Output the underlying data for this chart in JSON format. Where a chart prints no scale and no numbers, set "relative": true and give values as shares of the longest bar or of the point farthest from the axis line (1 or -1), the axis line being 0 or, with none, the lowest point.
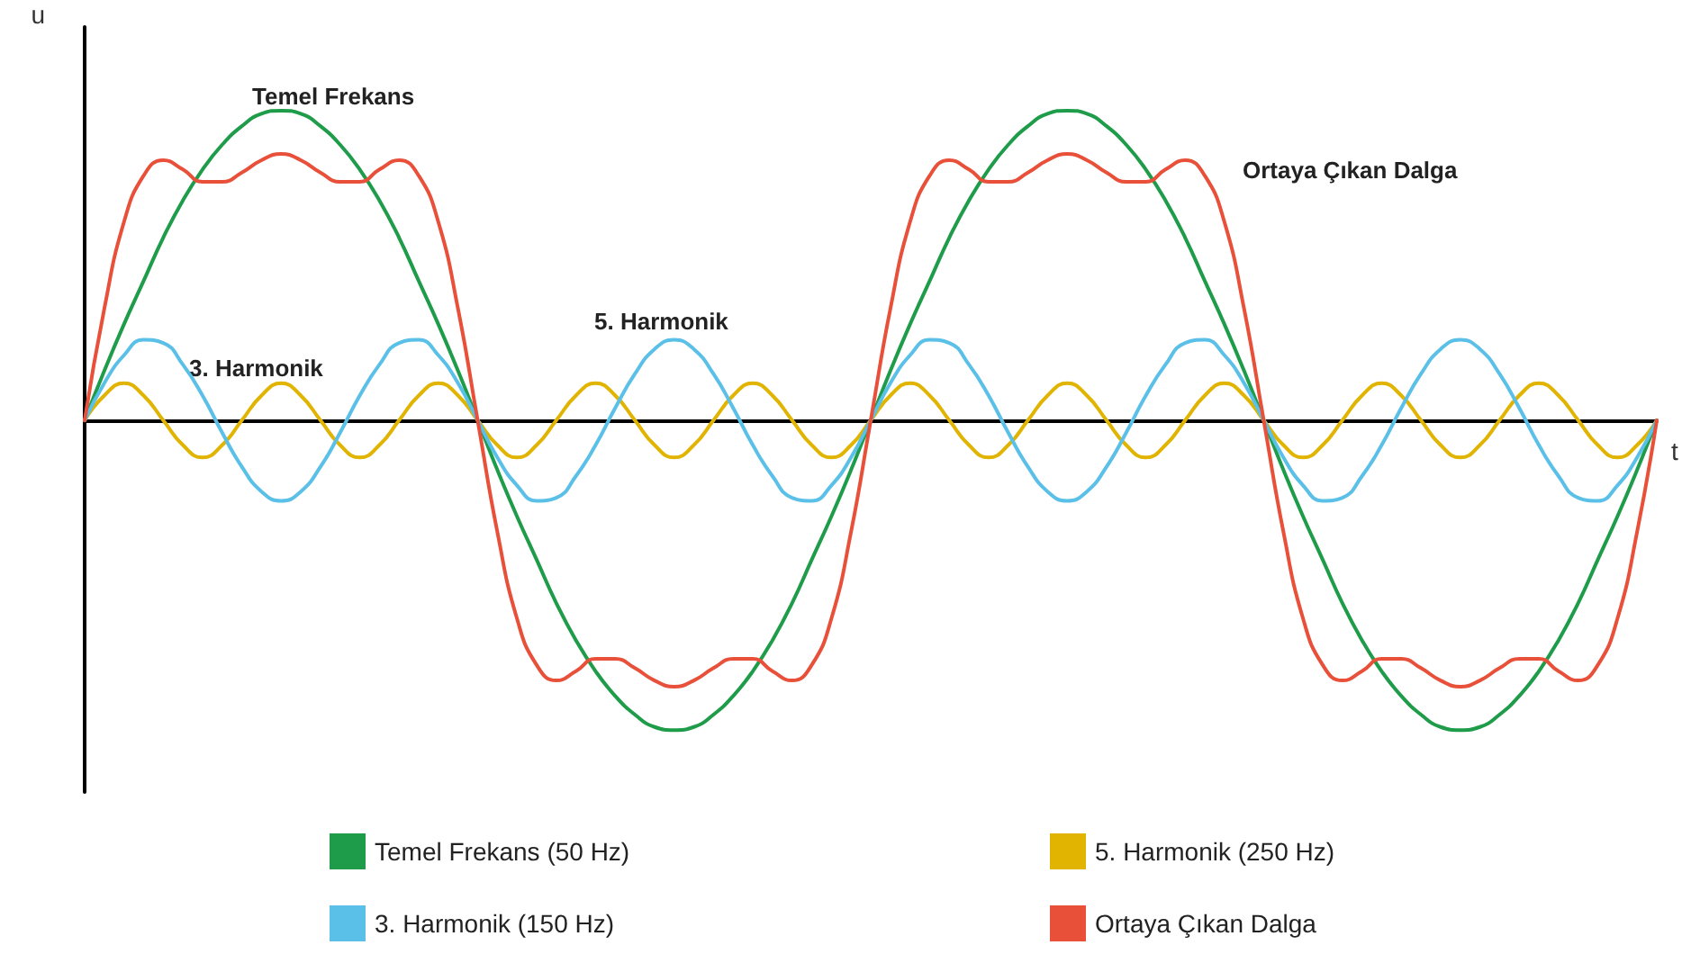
{
  "chart_data": {
    "type": "line",
    "relative": true,
    "xlabel": "t",
    "ylabel": "u",
    "legend": "bottom",
    "grid": false,
    "marker": "none",
    "line_style": "solid",
    "categories": [
      null,
      null,
      null,
      null,
      null,
      null,
      null,
      null,
      null,
      null,
      null,
      null,
      null,
      null,
      null,
      null,
      null,
      null,
      null,
      null,
      null,
      null,
      null,
      null,
      null,
      null,
      null,
      null,
      null,
      null,
      null,
      null,
      null,
      null,
      null,
      null,
      null,
      null,
      null,
      null,
      null,
      null,
      null,
      null,
      null,
      null,
      null,
      null,
      null,
      null,
      null,
      null,
      null,
      null,
      null,
      null,
      null,
      null,
      null,
      null,
      null,
      null,
      null,
      null,
      null,
      null,
      null,
      null,
      null,
      null,
      null,
      null,
      null,
      null,
      null,
      null,
      null,
      null,
      null,
      null,
      null
    ],
    "annotations": [
      "Temel Frekans",
      "3. Harmonik",
      "5. Harmonik",
      "Ortaya Çıkan Dalga"
    ],
    "series": [
      {
        "name": "Temel Frekans (50 Hz)",
        "color": "#1e9c4a",
        "values": [
          0,
          0.16,
          0.31,
          0.45,
          0.59,
          0.71,
          0.81,
          0.89,
          0.95,
          0.99,
          1,
          0.99,
          0.95,
          0.89,
          0.81,
          0.71,
          0.59,
          0.45,
          0.31,
          0.16,
          0,
          -0.16,
          -0.31,
          -0.45,
          -0.59,
          -0.71,
          -0.81,
          -0.89,
          -0.95,
          -0.99,
          -1,
          -0.99,
          -0.95,
          -0.89,
          -0.81,
          -0.71,
          -0.59,
          -0.45,
          -0.31,
          -0.16,
          0,
          0.16,
          0.31,
          0.45,
          0.59,
          0.71,
          0.81,
          0.89,
          0.95,
          0.99,
          1,
          0.99,
          0.95,
          0.89,
          0.81,
          0.71,
          0.59,
          0.45,
          0.31,
          0.16,
          0,
          -0.16,
          -0.31,
          -0.45,
          -0.59,
          -0.71,
          -0.81,
          -0.89,
          -0.95,
          -0.99,
          -1,
          -0.99,
          -0.95,
          -0.89,
          -0.81,
          -0.71,
          -0.59,
          -0.45,
          -0.31,
          -0.16,
          0
        ]
      },
      {
        "name": "5. Harmonik (250 Hz)",
        "color": "#e0b400",
        "values": [
          0,
          0.08,
          0.12,
          0.08,
          0,
          -0.08,
          -0.12,
          -0.08,
          0,
          0.08,
          0.12,
          0.08,
          0,
          -0.08,
          -0.12,
          -0.08,
          0,
          0.08,
          0.12,
          0.08,
          0,
          -0.08,
          -0.12,
          -0.08,
          0,
          0.08,
          0.12,
          0.08,
          0,
          -0.08,
          -0.12,
          -0.08,
          0,
          0.08,
          0.12,
          0.08,
          0,
          -0.08,
          -0.12,
          -0.08,
          0,
          0.08,
          0.12,
          0.08,
          0,
          -0.08,
          -0.12,
          -0.08,
          0,
          0.08,
          0.12,
          0.08,
          0,
          -0.08,
          -0.12,
          -0.08,
          0,
          0.08,
          0.12,
          0.08,
          0,
          -0.08,
          -0.12,
          -0.08,
          0,
          0.08,
          0.12,
          0.08,
          0,
          -0.08,
          -0.12,
          -0.08,
          0,
          0.08,
          0.12,
          0.08,
          0,
          -0.08,
          -0.12,
          -0.08,
          0
        ]
      },
      {
        "name": "3. Harmonik (150 Hz)",
        "color": "#5bc0e8",
        "values": [
          0,
          0.12,
          0.21,
          0.26,
          0.25,
          0.18,
          0.08,
          -0.04,
          -0.15,
          -0.23,
          -0.26,
          -0.23,
          -0.15,
          -0.04,
          0.08,
          0.18,
          0.25,
          0.26,
          0.21,
          0.12,
          0,
          -0.12,
          -0.21,
          -0.26,
          -0.25,
          -0.18,
          -0.08,
          0.04,
          0.15,
          0.23,
          0.26,
          0.23,
          0.15,
          0.04,
          -0.08,
          -0.18,
          -0.25,
          -0.26,
          -0.21,
          -0.12,
          0,
          0.12,
          0.21,
          0.26,
          0.25,
          0.18,
          0.08,
          -0.04,
          -0.15,
          -0.23,
          -0.26,
          -0.23,
          -0.15,
          -0.04,
          0.08,
          0.18,
          0.25,
          0.26,
          0.21,
          0.12,
          0,
          -0.12,
          -0.21,
          -0.26,
          -0.25,
          -0.18,
          -0.08,
          0.04,
          0.15,
          0.23,
          0.26,
          0.23,
          0.15,
          0.04,
          -0.08,
          -0.18,
          -0.25,
          -0.26,
          -0.21,
          -0.12,
          0
        ]
      },
      {
        "name": "Ortaya Çıkan Dalga",
        "color": "#e8503a",
        "values": [
          0,
          0.36,
          0.64,
          0.79,
          0.84,
          0.81,
          0.77,
          0.77,
          0.8,
          0.84,
          0.86,
          0.84,
          0.8,
          0.77,
          0.77,
          0.81,
          0.84,
          0.79,
          0.64,
          0.36,
          0,
          -0.36,
          -0.64,
          -0.79,
          -0.84,
          -0.81,
          -0.77,
          -0.77,
          -0.8,
          -0.84,
          -0.86,
          -0.84,
          -0.8,
          -0.77,
          -0.77,
          -0.81,
          -0.84,
          -0.79,
          -0.64,
          -0.36,
          0,
          0.36,
          0.64,
          0.79,
          0.84,
          0.81,
          0.77,
          0.77,
          0.8,
          0.84,
          0.86,
          0.84,
          0.8,
          0.77,
          0.77,
          0.81,
          0.84,
          0.79,
          0.64,
          0.36,
          0,
          -0.36,
          -0.64,
          -0.79,
          -0.84,
          -0.81,
          -0.77,
          -0.77,
          -0.8,
          -0.84,
          -0.86,
          -0.84,
          -0.8,
          -0.77,
          -0.77,
          -0.81,
          -0.84,
          -0.79,
          -0.64,
          -0.36,
          0
        ]
      }
    ]
  }
}
